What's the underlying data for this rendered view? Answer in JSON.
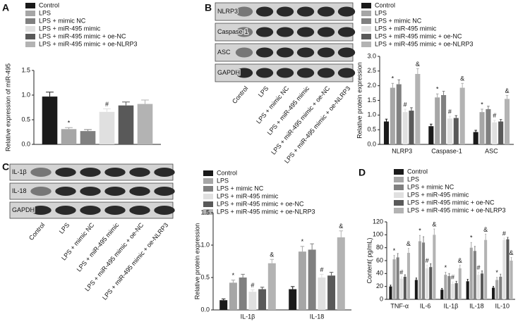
{
  "panel_labels": [
    "A",
    "B",
    "C",
    "D"
  ],
  "blots": [
    {
      "rows": [
        "NLRP3",
        "Caspase-1",
        "ASC",
        "GAPDH"
      ],
      "lanes": [
        "Control",
        "LPS",
        "LPS + mimic NC",
        "LPS + miR-495 mimic",
        "LPS + miR-495 mimic + oe-NC",
        "LPS + miR-495 mimic + oe-NLRP3"
      ]
    },
    {
      "rows": [
        "IL-1β",
        "IL-18",
        "GAPDH"
      ],
      "lanes": [
        "Control",
        "LPS",
        "LPS + mimic NC",
        "LPS + miR-495 mimic",
        "LPS + miR-495 mimic + oe-NC",
        "LPS + miR-495 mimic + oe-NLRP3"
      ]
    }
  ],
  "chart_data": [
    {
      "type": "bar",
      "y_label": "Relative expression of miR-495",
      "categories": [
        null
      ],
      "ylim": [
        0,
        1.5
      ],
      "yticks": [
        {
          "value": 0,
          "label": "0.0"
        },
        {
          "value": 0.5,
          "label": "0.5"
        },
        {
          "value": 1,
          "label": "1.0"
        },
        {
          "value": 1.5,
          "label": "1.5"
        }
      ],
      "series": [
        {
          "name": "Control",
          "color": "#1a1a1a",
          "values": [
            0.97
          ],
          "errors": [
            0.09
          ],
          "labels": [
            null
          ]
        },
        {
          "name": "LPS",
          "color": "#a6a6a6",
          "values": [
            0.31
          ],
          "errors": [
            0.03
          ],
          "labels": [
            "*"
          ]
        },
        {
          "name": "LPS + mimic NC",
          "color": "#808080",
          "values": [
            0.27
          ],
          "errors": [
            0.03
          ],
          "labels": [
            null
          ]
        },
        {
          "name": "LPS + miR-495 mimic",
          "color": "#e0e0e0",
          "values": [
            0.66
          ],
          "errors": [
            0.06
          ],
          "labels": [
            "#"
          ]
        },
        {
          "name": "LPS + miR-495 mimic + oe-NC",
          "color": "#595959",
          "values": [
            0.79
          ],
          "errors": [
            0.07
          ],
          "labels": [
            null
          ]
        },
        {
          "name": "LPS + miR-495 mimic + oe-NLRP3",
          "color": "#b3b3b3",
          "values": [
            0.82
          ],
          "errors": [
            0.08
          ],
          "labels": [
            null
          ]
        }
      ]
    },
    {
      "type": "bar",
      "y_label": "Relative protein expression",
      "categories": [
        "NLRP3",
        "Caspase-1",
        "ASC"
      ],
      "ylim": [
        0,
        3
      ],
      "yticks": [
        {
          "value": 0,
          "label": "0.0"
        },
        {
          "value": 0.5,
          "label": "0.5"
        },
        {
          "value": 1,
          "label": "1.0"
        },
        {
          "value": 1.5,
          "label": "1.5"
        },
        {
          "value": 2,
          "label": "2.0"
        },
        {
          "value": 2.5,
          "label": "2.5"
        },
        {
          "value": 3,
          "label": "3.0"
        }
      ],
      "series": [
        {
          "name": "Control",
          "color": "#1a1a1a",
          "values": [
            0.78,
            0.62,
            0.42
          ],
          "errors": [
            0.08,
            0.07,
            0.06
          ],
          "labels": [
            null,
            null,
            null
          ]
        },
        {
          "name": "LPS",
          "color": "#a6a6a6",
          "values": [
            1.93,
            1.6,
            1.1
          ],
          "errors": [
            0.15,
            0.12,
            0.1
          ],
          "labels": [
            "*",
            "*",
            "*"
          ]
        },
        {
          "name": "LPS + mimic NC",
          "color": "#808080",
          "values": [
            2.05,
            1.68,
            1.2
          ],
          "errors": [
            0.15,
            0.13,
            0.1
          ],
          "labels": [
            null,
            null,
            null
          ]
        },
        {
          "name": "LPS + miR-495 mimic",
          "color": "#e0e0e0",
          "values": [
            1.1,
            0.88,
            0.75
          ],
          "errors": [
            0.1,
            0.08,
            0.07
          ],
          "labels": [
            "#",
            "#",
            "#"
          ]
        },
        {
          "name": "LPS + miR-495 mimic + oe-NC",
          "color": "#595959",
          "values": [
            1.15,
            0.9,
            0.78
          ],
          "errors": [
            0.1,
            0.08,
            0.07
          ],
          "labels": [
            null,
            null,
            null
          ]
        },
        {
          "name": "LPS + miR-495 mimic + oe-NLRP3",
          "color": "#b3b3b3",
          "values": [
            2.4,
            1.93,
            1.55
          ],
          "errors": [
            0.18,
            0.15,
            0.12
          ],
          "labels": [
            "&",
            "&",
            "&"
          ]
        }
      ]
    },
    {
      "type": "bar",
      "y_label": "Relative protein expression",
      "categories": [
        "IL-1β",
        "IL-18"
      ],
      "ylim": [
        0,
        1.5
      ],
      "yticks": [
        {
          "value": 0,
          "label": "0.0"
        },
        {
          "value": 0.5,
          "label": "0.5"
        },
        {
          "value": 1,
          "label": "1.0"
        },
        {
          "value": 1.5,
          "label": "1.5"
        }
      ],
      "series": [
        {
          "name": "Control",
          "color": "#1a1a1a",
          "values": [
            0.15,
            0.32
          ],
          "errors": [
            0.02,
            0.04
          ],
          "labels": [
            null,
            null
          ]
        },
        {
          "name": "LPS",
          "color": "#a6a6a6",
          "values": [
            0.42,
            0.9
          ],
          "errors": [
            0.04,
            0.08
          ],
          "labels": [
            "*",
            "*"
          ]
        },
        {
          "name": "LPS + mimic NC",
          "color": "#808080",
          "values": [
            0.5,
            0.93
          ],
          "errors": [
            0.05,
            0.09
          ],
          "labels": [
            null,
            null
          ]
        },
        {
          "name": "LPS + miR-495 mimic",
          "color": "#e0e0e0",
          "values": [
            0.28,
            0.5
          ],
          "errors": [
            0.03,
            0.05
          ],
          "labels": [
            "#",
            "#"
          ]
        },
        {
          "name": "LPS + miR-495 mimic + oe-NC",
          "color": "#595959",
          "values": [
            0.32,
            0.53
          ],
          "errors": [
            0.03,
            0.05
          ],
          "labels": [
            null,
            null
          ]
        },
        {
          "name": "LPS + miR-495 mimic + oe-NLRP3",
          "color": "#b3b3b3",
          "values": [
            0.72,
            1.12
          ],
          "errors": [
            0.06,
            0.1
          ],
          "labels": [
            "&",
            "&"
          ]
        }
      ]
    },
    {
      "type": "bar",
      "y_label": "Content( pg/mL)",
      "categories": [
        "TNF-α",
        "IL-6",
        "IL-1β",
        "IL-18",
        "IL-10"
      ],
      "ylim": [
        0,
        120
      ],
      "yticks": [
        0,
        20,
        40,
        60,
        80,
        100,
        120
      ],
      "series": [
        {
          "name": "Control",
          "color": "#1a1a1a",
          "values": [
            20,
            30,
            15,
            28,
            18
          ],
          "errors": [
            2,
            3,
            2,
            3,
            2
          ],
          "labels": [
            null,
            null,
            null,
            null,
            null
          ]
        },
        {
          "name": "LPS",
          "color": "#a6a6a6",
          "values": [
            62,
            90,
            38,
            80,
            30
          ],
          "errors": [
            6,
            9,
            4,
            8,
            4
          ],
          "labels": [
            "*",
            "*",
            "*",
            "*",
            "*"
          ]
        },
        {
          "name": "LPS + mimic NC",
          "color": "#808080",
          "values": [
            65,
            88,
            36,
            75,
            35
          ],
          "errors": [
            6,
            9,
            4,
            7,
            4
          ],
          "labels": [
            null,
            null,
            null,
            null,
            null
          ]
        },
        {
          "name": "LPS + miR-495 mimic",
          "color": "#e0e0e0",
          "values": [
            32,
            48,
            24,
            38,
            92
          ],
          "errors": [
            3,
            5,
            3,
            4,
            3
          ],
          "labels": [
            "#",
            "#",
            "#",
            "#",
            "#"
          ]
        },
        {
          "name": "LPS + miR-495 mimic + oe-NC",
          "color": "#595959",
          "values": [
            35,
            50,
            25,
            40,
            93
          ],
          "errors": [
            3,
            5,
            3,
            4,
            3
          ],
          "labels": [
            null,
            null,
            null,
            null,
            null
          ]
        },
        {
          "name": "LPS + miR-495 mimic + oe-NLRP3",
          "color": "#b3b3b3",
          "values": [
            72,
            100,
            48,
            92,
            60
          ],
          "errors": [
            7,
            9,
            5,
            9,
            5
          ],
          "labels": [
            "&",
            "&",
            "&",
            "&",
            "&"
          ]
        }
      ]
    }
  ]
}
